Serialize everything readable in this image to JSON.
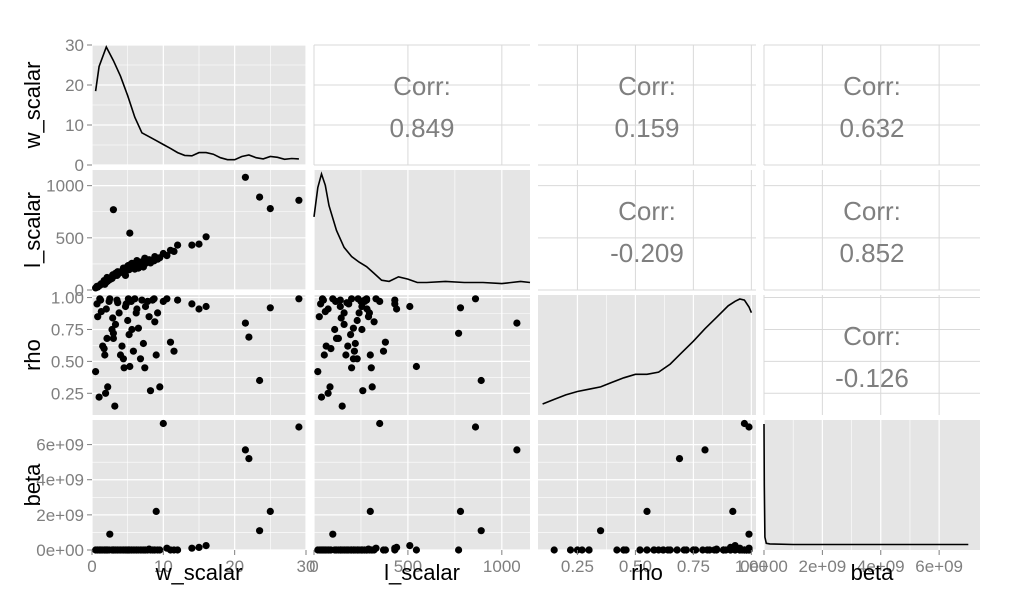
{
  "chart_data": {
    "type": "scatter-matrix",
    "variables": [
      {
        "name": "w_scalar",
        "range": [
          0,
          30
        ],
        "ticks": [
          "0",
          "10",
          "20",
          "30"
        ]
      },
      {
        "name": "l_scalar",
        "range": [
          0,
          1150
        ],
        "ticks": [
          "0",
          "500",
          "1000"
        ]
      },
      {
        "name": "rho",
        "range": [
          0.08,
          1.02
        ],
        "ticks": [
          "0.25",
          "0.50",
          "0.75",
          "1.00"
        ]
      },
      {
        "name": "beta",
        "range": [
          0,
          7400000000.0
        ],
        "ticks": [
          "0e+00",
          "2e+09",
          "4e+09",
          "6e+09"
        ]
      }
    ],
    "diag_ticks": [
      {
        "labels": [
          "0",
          "10",
          "20",
          "30"
        ],
        "values": [
          0,
          10,
          20,
          30
        ],
        "range": [
          0,
          30
        ]
      },
      null,
      null,
      {
        "labels": [
          "0e+00",
          "2e+09",
          "4e+09",
          "6e+09"
        ],
        "values": [
          0,
          2000000000.0,
          4000000000.0,
          6000000000.0
        ],
        "range": [
          0,
          7400000000.0
        ]
      }
    ],
    "correlations": [
      {
        "row": 0,
        "col": 1,
        "label": "Corr:",
        "value": "0.849"
      },
      {
        "row": 0,
        "col": 2,
        "label": "Corr:",
        "value": "0.159"
      },
      {
        "row": 0,
        "col": 3,
        "label": "Corr:",
        "value": "0.632"
      },
      {
        "row": 1,
        "col": 2,
        "label": "Corr:",
        "value": "-0.209"
      },
      {
        "row": 1,
        "col": 3,
        "label": "Corr:",
        "value": "0.852"
      },
      {
        "row": 2,
        "col": 3,
        "label": "Corr:",
        "value": "-0.126"
      }
    ],
    "densities": [
      {
        "var": "w_scalar",
        "x": [
          0.5,
          1,
          2,
          3,
          4,
          5,
          6,
          7,
          8,
          9,
          10,
          11,
          12,
          13,
          14,
          15,
          16,
          17,
          18,
          19,
          20,
          21,
          22,
          23,
          24,
          25,
          26,
          27,
          28,
          29
        ],
        "y": [
          18.2,
          24.5,
          29.5,
          26,
          22,
          17,
          11.5,
          7.5,
          6.5,
          5.5,
          4.5,
          3.5,
          2.4,
          1.7,
          1.6,
          2.4,
          2.4,
          2,
          1.1,
          0.6,
          0.6,
          1.4,
          1.8,
          1.1,
          0.8,
          1.4,
          1.2,
          0.7,
          0.9,
          0.8
        ]
      },
      {
        "var": "l_scalar",
        "x": [
          0,
          20,
          40,
          60,
          80,
          120,
          160,
          200,
          240,
          280,
          320,
          360,
          400,
          450,
          500,
          550,
          600,
          700,
          800,
          900,
          1000,
          1100,
          1150
        ],
        "y": [
          0.62,
          0.88,
          1.0,
          0.9,
          0.72,
          0.5,
          0.35,
          0.27,
          0.22,
          0.18,
          0.12,
          0.06,
          0.05,
          0.09,
          0.07,
          0.04,
          0.04,
          0.05,
          0.04,
          0.04,
          0.03,
          0.05,
          0.04
        ]
      },
      {
        "var": "rho",
        "x": [
          0.1,
          0.15,
          0.2,
          0.25,
          0.3,
          0.35,
          0.4,
          0.45,
          0.5,
          0.55,
          0.6,
          0.65,
          0.7,
          0.75,
          0.8,
          0.85,
          0.9,
          0.93,
          0.95,
          0.97,
          0.99,
          1.0
        ],
        "y": [
          0.07,
          0.11,
          0.15,
          0.18,
          0.2,
          0.22,
          0.26,
          0.3,
          0.33,
          0.33,
          0.35,
          0.42,
          0.52,
          0.62,
          0.73,
          0.83,
          0.93,
          0.97,
          0.99,
          0.98,
          0.92,
          0.87
        ]
      },
      {
        "var": "beta",
        "x": [
          0,
          10000000.0,
          30000000.0,
          80000000.0,
          200000000.0,
          1000000000.0,
          2000000000.0,
          3000000000.0,
          4000000000.0,
          5000000000.0,
          6000000000.0,
          7000000000.0
        ],
        "y": [
          1.0,
          0.5,
          0.08,
          0.03,
          0.025,
          0.02,
          0.02,
          0.02,
          0.02,
          0.02,
          0.02,
          0.02
        ]
      }
    ],
    "points": {
      "w_scalar": [
        0.5,
        0.8,
        1,
        1.2,
        1.5,
        1.8,
        2,
        2.2,
        2.5,
        2.8,
        3,
        3.2,
        3.5,
        3.8,
        4,
        4.2,
        4.5,
        4.8,
        5,
        5.2,
        5.5,
        5.8,
        6,
        6.2,
        6.5,
        6.8,
        7,
        7.2,
        7.5,
        7.8,
        8,
        8.2,
        8.5,
        8.8,
        9,
        9.5,
        10,
        10.5,
        11,
        12,
        14,
        15,
        16,
        21.5,
        22,
        23.5,
        25,
        29,
        0.7,
        1.3,
        1.7,
        2.4,
        2.9,
        3.6,
        4.4,
        5.1,
        5.6,
        6.3,
        7.4,
        2.1,
        3.3,
        1.1,
        1.9,
        4.7,
        8.7,
        9.2,
        11.5,
        3,
        5.3
      ],
      "l_scalar": [
        20,
        28,
        40,
        50,
        65,
        55,
        75,
        85,
        100,
        110,
        130,
        150,
        140,
        160,
        170,
        180,
        200,
        185,
        230,
        195,
        250,
        215,
        200,
        240,
        210,
        230,
        270,
        220,
        255,
        270,
        290,
        260,
        280,
        320,
        300,
        310,
        350,
        330,
        380,
        430,
        430,
        440,
        510,
        1080,
        1170,
        890,
        780,
        860,
        35,
        60,
        90,
        115,
        145,
        175,
        210,
        235,
        255,
        282,
        305,
        120,
        160,
        45,
        75,
        140,
        280,
        295,
        370,
        770,
        545
      ],
      "rho": [
        0.42,
        0.85,
        0.22,
        0.98,
        0.62,
        0.55,
        0.91,
        0.3,
        0.99,
        0.75,
        0.68,
        0.15,
        0.98,
        0.88,
        0.55,
        0.62,
        0.45,
        0.95,
        0.82,
        0.71,
        0.97,
        0.58,
        0.99,
        0.88,
        0.76,
        0.52,
        0.98,
        0.64,
        0.93,
        0.97,
        0.85,
        0.27,
        0.98,
        0.81,
        0.55,
        0.3,
        0.97,
        0.99,
        0.65,
        0.98,
        0.95,
        0.91,
        0.93,
        0.8,
        0.69,
        0.35,
        0.92,
        0.99,
        0.95,
        0.89,
        0.6,
        0.97,
        0.84,
        0.96,
        0.52,
        0.99,
        0.75,
        0.91,
        0.45,
        0.68,
        0.79,
        0.99,
        0.25,
        0.93,
        0.99,
        0.88,
        0.58,
        0.72,
        0.46
      ],
      "beta": [
        0,
        0,
        0,
        0,
        0,
        0,
        0,
        0,
        900000000.0,
        0,
        0,
        0,
        0,
        0,
        0,
        0,
        0,
        0,
        0,
        0,
        0,
        0,
        0,
        0,
        0,
        0,
        0,
        0,
        0,
        0,
        50000000.0,
        0,
        0,
        0,
        2200000000.0,
        0,
        7200000000.0,
        100000000.0,
        0,
        0,
        100000000.0,
        150000000.0,
        250000000.0,
        5700000000.0,
        5200000000.0,
        1100000000.0,
        2200000000.0,
        7000000000.0,
        0,
        0,
        0,
        0,
        0,
        0,
        0,
        0,
        0,
        0,
        0,
        0,
        0,
        0,
        0,
        0,
        0,
        0,
        0,
        0,
        0
      ]
    },
    "grid": true
  }
}
